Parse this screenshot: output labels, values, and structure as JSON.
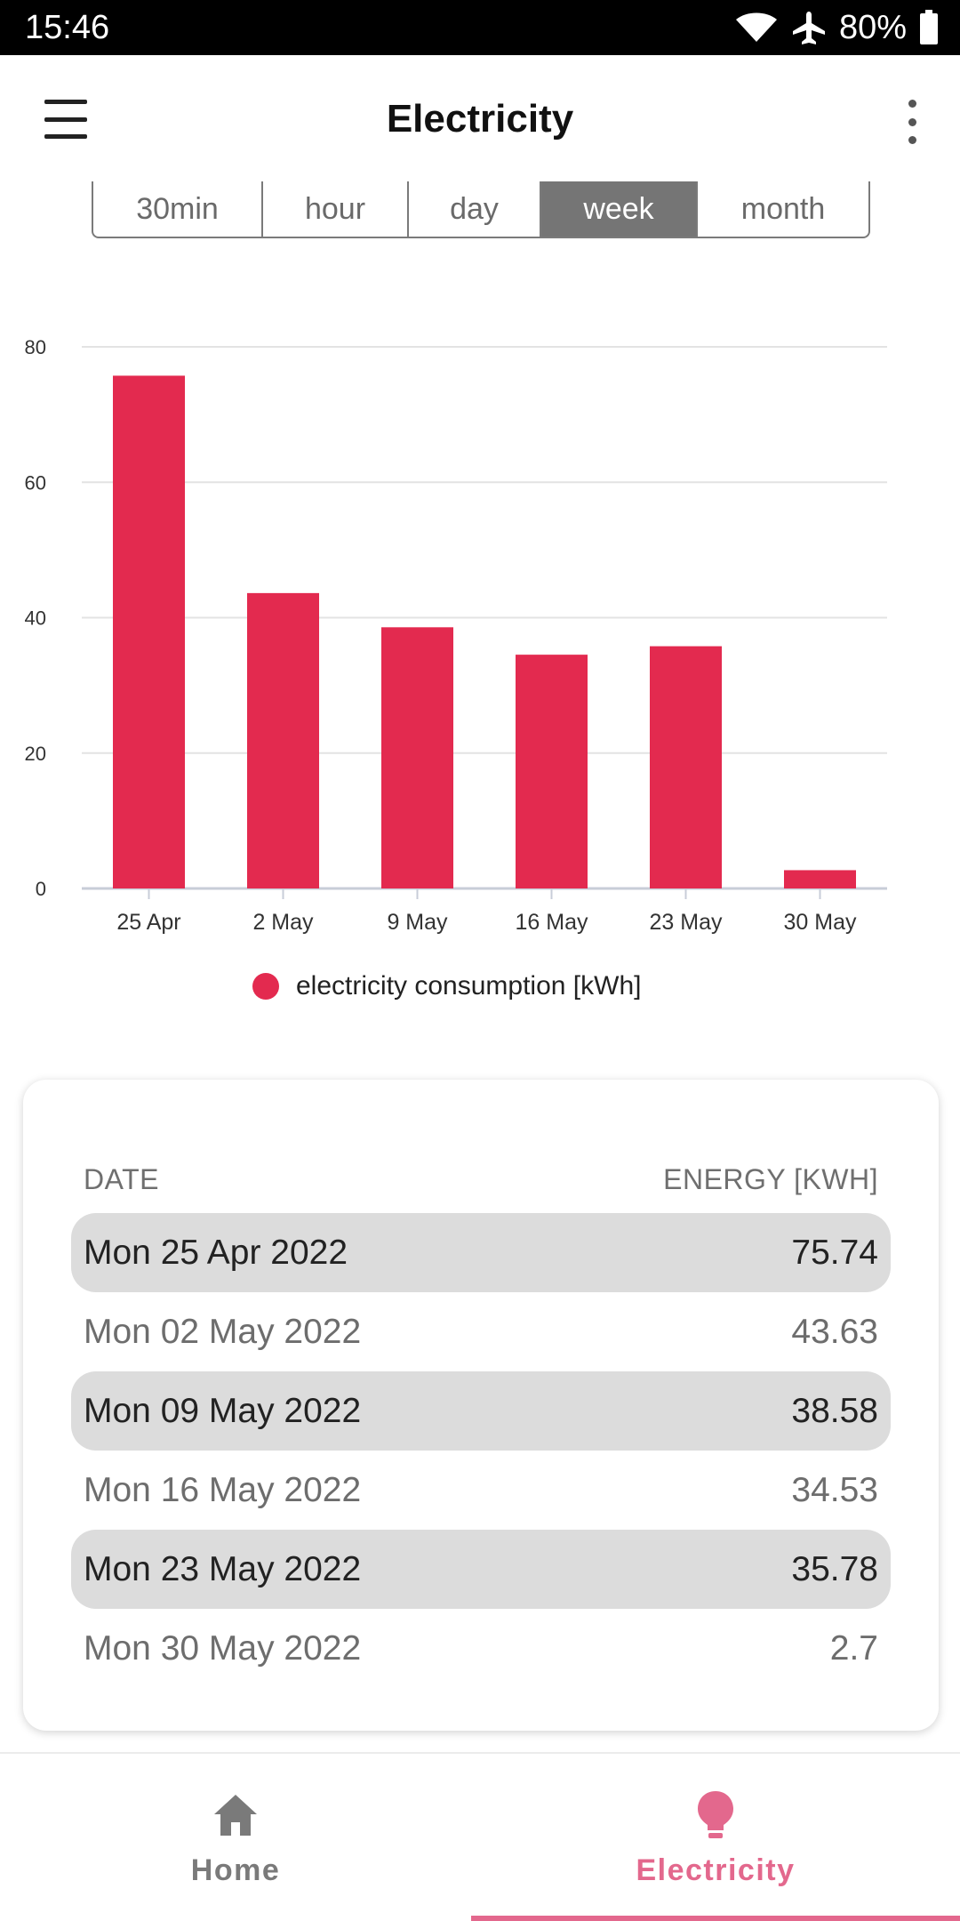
{
  "status_bar": {
    "time": "15:46",
    "battery": "80%",
    "icons": [
      "wifi-icon",
      "airplane-icon",
      "battery-icon"
    ]
  },
  "app_bar": {
    "title": "Electricity",
    "menu_icon": "menu-icon",
    "more_icon": "more-vert-icon"
  },
  "period_tabs": {
    "items": [
      {
        "label": "30min",
        "selected": false
      },
      {
        "label": "hour",
        "selected": false
      },
      {
        "label": "day",
        "selected": false
      },
      {
        "label": "week",
        "selected": true
      },
      {
        "label": "month",
        "selected": false
      }
    ]
  },
  "chart_data": {
    "type": "bar",
    "categories": [
      "25 Apr",
      "2 May",
      "9 May",
      "16 May",
      "23 May",
      "30 May"
    ],
    "series": [
      {
        "name": "electricity consumption [kWh]",
        "values": [
          75.74,
          43.63,
          38.58,
          34.53,
          35.78,
          2.7
        ],
        "color": "#e32a4f"
      }
    ],
    "ylim": [
      0,
      80
    ],
    "yticks": [
      0,
      20,
      40,
      60,
      80
    ],
    "grid": true,
    "legend": "bottom-center",
    "title": "",
    "xlabel": "",
    "ylabel": ""
  },
  "table": {
    "header_date": "DATE",
    "header_energy": "ENERGY [KWH]",
    "rows": [
      {
        "date": "Mon 25 Apr 2022",
        "energy": "75.74"
      },
      {
        "date": "Mon 02 May 2022",
        "energy": "43.63"
      },
      {
        "date": "Mon 09 May 2022",
        "energy": "38.58"
      },
      {
        "date": "Mon 16 May 2022",
        "energy": "34.53"
      },
      {
        "date": "Mon 23 May 2022",
        "energy": "35.78"
      },
      {
        "date": "Mon 30 May 2022",
        "energy": "2.7"
      }
    ]
  },
  "bottom_nav": {
    "home_label": "Home",
    "electricity_label": "Electricity",
    "active": "Electricity",
    "accent_color": "#e3688d",
    "inactive_color": "#7a7a7a"
  }
}
